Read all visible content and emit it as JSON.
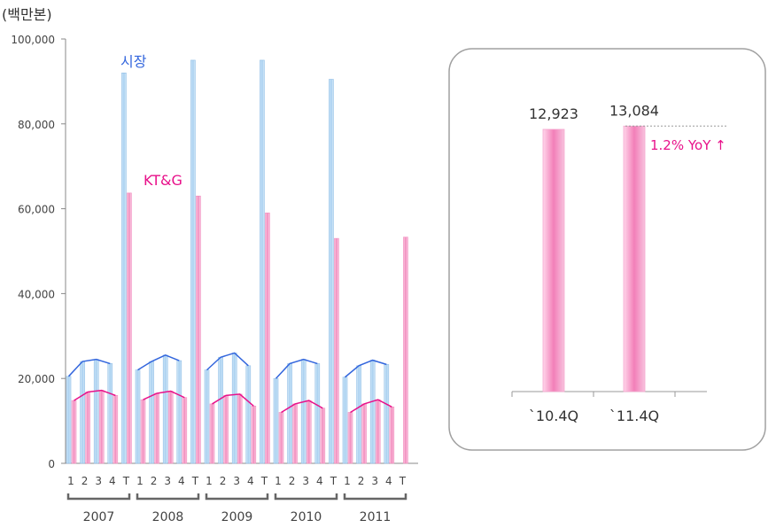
{
  "chart_data": [
    {
      "type": "bar",
      "unit_label": "(백만본)",
      "ylim": [
        0,
        100000
      ],
      "yticks": [
        "0",
        "20,000",
        "40,000",
        "60,000",
        "80,000",
        "100,000"
      ],
      "ytick_values": [
        0,
        20000,
        40000,
        60000,
        80000,
        100000
      ],
      "categories": [
        "1",
        "2",
        "3",
        "4",
        "T"
      ],
      "years": [
        "2007",
        "2008",
        "2009",
        "2010",
        "2011"
      ],
      "series": [
        {
          "name": "시장",
          "color": "#3366dd",
          "bar_color": "#bcdcf4",
          "values": [
            [
              20500,
              24000,
              24500,
              23500,
              92000
            ],
            [
              22000,
              24000,
              25500,
              24200,
              95000
            ],
            [
              22000,
              25000,
              26000,
              23000,
              95000
            ],
            [
              20000,
              23500,
              24500,
              23500,
              90500
            ],
            [
              20300,
              23000,
              24300,
              23300,
              null
            ]
          ]
        },
        {
          "name": "KT&G",
          "color": "#e8118a",
          "bar_color": "#f9b9d8",
          "values": [
            [
              14800,
              16800,
              17200,
              16000,
              63700
            ],
            [
              15000,
              16500,
              17000,
              15500,
              63000
            ],
            [
              14000,
              16000,
              16300,
              13500,
              59000
            ],
            [
              12000,
              14000,
              14800,
              13000,
              53000
            ],
            [
              12000,
              14000,
              15000,
              13300,
              53300
            ]
          ]
        }
      ]
    },
    {
      "type": "bar",
      "categories": [
        "`10.4Q",
        "`11.4Q"
      ],
      "values": [
        12923,
        13084
      ],
      "value_labels": [
        "12,923",
        "13,084"
      ],
      "annotation": "1.2% YoY ↑",
      "colors": {
        "bar": "#f48dc1",
        "annotation": "#e8118a",
        "panel_border": "#a0a0a0"
      }
    }
  ]
}
